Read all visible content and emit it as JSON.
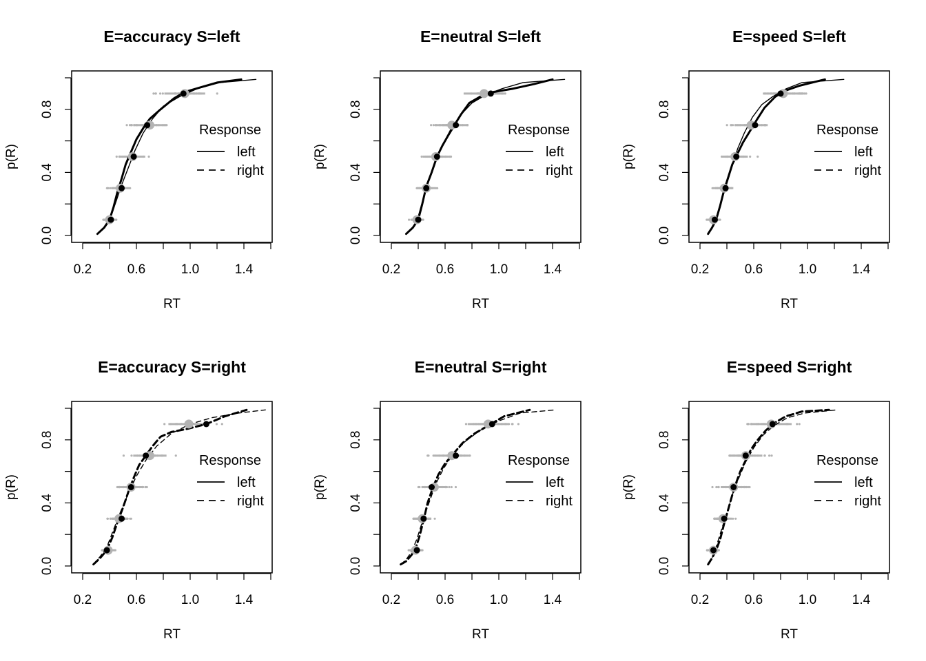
{
  "chart_data": [
    {
      "type": "line",
      "title": "E=accuracy S=left",
      "xlabel": "RT",
      "ylabel": "p(R)",
      "xlim": [
        0.2,
        1.6
      ],
      "ylim": [
        0.0,
        1.0
      ],
      "xticks": [
        "0.2",
        "0.6",
        "1.0",
        "1.4"
      ],
      "yticks": [
        "0.0",
        "0.4",
        "0.8"
      ],
      "legend": {
        "title": "Response",
        "entries": [
          "left",
          "right"
        ],
        "styles": [
          "solid",
          "dashed"
        ],
        "placement": "right"
      },
      "observed_quantiles": {
        "p": [
          0.1,
          0.3,
          0.5,
          0.7,
          0.9
        ],
        "rt": [
          0.41,
          0.49,
          0.58,
          0.68,
          0.95
        ]
      },
      "predicted_quantiles": {
        "p": [
          0.1,
          0.3,
          0.5,
          0.7,
          0.9
        ],
        "rt": [
          0.4,
          0.48,
          0.57,
          0.7,
          0.96
        ]
      },
      "series": [
        {
          "name": "left",
          "style": "solid",
          "x": [
            0.31,
            0.36,
            0.4,
            0.43,
            0.46,
            0.49,
            0.52,
            0.56,
            0.6,
            0.65,
            0.7,
            0.78,
            0.88,
            0.96,
            1.08,
            1.2,
            1.38
          ],
          "y": [
            0.01,
            0.05,
            0.1,
            0.18,
            0.28,
            0.36,
            0.45,
            0.53,
            0.61,
            0.68,
            0.74,
            0.8,
            0.87,
            0.91,
            0.94,
            0.97,
            0.99
          ]
        },
        {
          "name": "left-sim",
          "style": "solid-thin",
          "x": [
            0.31,
            0.37,
            0.41,
            0.45,
            0.49,
            0.54,
            0.59,
            0.65,
            0.72,
            0.8,
            0.92,
            1.05,
            1.22,
            1.49
          ],
          "y": [
            0.01,
            0.06,
            0.12,
            0.22,
            0.32,
            0.43,
            0.54,
            0.65,
            0.74,
            0.82,
            0.88,
            0.93,
            0.97,
            0.99
          ]
        }
      ]
    },
    {
      "type": "line",
      "title": "E=neutral S=left",
      "xlabel": "RT",
      "ylabel": "p(R)",
      "xlim": [
        0.2,
        1.6
      ],
      "ylim": [
        0.0,
        1.0
      ],
      "xticks": [
        "0.2",
        "0.6",
        "1.0",
        "1.4"
      ],
      "yticks": [
        "0.0",
        "0.4",
        "0.8"
      ],
      "legend": {
        "title": "Response",
        "entries": [
          "left",
          "right"
        ],
        "styles": [
          "solid",
          "dashed"
        ],
        "placement": "right"
      },
      "observed_quantiles": {
        "p": [
          0.1,
          0.3,
          0.5,
          0.7,
          0.9
        ],
        "rt": [
          0.4,
          0.46,
          0.54,
          0.68,
          0.94
        ]
      },
      "predicted_quantiles": {
        "p": [
          0.1,
          0.3,
          0.5,
          0.7,
          0.9
        ],
        "rt": [
          0.39,
          0.46,
          0.53,
          0.65,
          0.89
        ]
      },
      "series": [
        {
          "name": "left",
          "style": "solid",
          "x": [
            0.31,
            0.36,
            0.4,
            0.43,
            0.46,
            0.5,
            0.54,
            0.58,
            0.62,
            0.67,
            0.72,
            0.78,
            0.86,
            0.96,
            1.1,
            1.26,
            1.4
          ],
          "y": [
            0.01,
            0.05,
            0.1,
            0.2,
            0.31,
            0.4,
            0.5,
            0.57,
            0.63,
            0.7,
            0.77,
            0.84,
            0.88,
            0.91,
            0.93,
            0.96,
            0.99
          ]
        },
        {
          "name": "left-sim",
          "style": "solid-thin",
          "x": [
            0.31,
            0.36,
            0.4,
            0.44,
            0.48,
            0.53,
            0.58,
            0.64,
            0.71,
            0.8,
            0.9,
            1.02,
            1.18,
            1.49
          ],
          "y": [
            0.01,
            0.05,
            0.12,
            0.24,
            0.35,
            0.47,
            0.57,
            0.67,
            0.76,
            0.84,
            0.89,
            0.93,
            0.97,
            0.99
          ]
        }
      ]
    },
    {
      "type": "line",
      "title": "E=speed S=left",
      "xlabel": "RT",
      "ylabel": "p(R)",
      "xlim": [
        0.2,
        1.6
      ],
      "ylim": [
        0.0,
        1.0
      ],
      "xticks": [
        "0.2",
        "0.6",
        "1.0",
        "1.4"
      ],
      "yticks": [
        "0.0",
        "0.4",
        "0.8"
      ],
      "legend": {
        "title": "Response",
        "entries": [
          "left",
          "right"
        ],
        "styles": [
          "solid",
          "dashed"
        ],
        "placement": "right"
      },
      "observed_quantiles": {
        "p": [
          0.1,
          0.3,
          0.5,
          0.7,
          0.9
        ],
        "rt": [
          0.31,
          0.39,
          0.47,
          0.61,
          0.8
        ]
      },
      "predicted_quantiles": {
        "p": [
          0.1,
          0.3,
          0.5,
          0.7,
          0.9
        ],
        "rt": [
          0.3,
          0.38,
          0.46,
          0.58,
          0.82
        ]
      },
      "series": [
        {
          "name": "left",
          "style": "solid",
          "x": [
            0.26,
            0.29,
            0.32,
            0.35,
            0.38,
            0.41,
            0.44,
            0.48,
            0.52,
            0.57,
            0.62,
            0.68,
            0.76,
            0.84,
            0.94,
            1.13
          ],
          "y": [
            0.01,
            0.05,
            0.1,
            0.19,
            0.29,
            0.37,
            0.45,
            0.52,
            0.59,
            0.66,
            0.73,
            0.81,
            0.88,
            0.92,
            0.95,
            0.99
          ]
        },
        {
          "name": "left-sim",
          "style": "solid-thin",
          "x": [
            0.26,
            0.3,
            0.33,
            0.36,
            0.4,
            0.44,
            0.48,
            0.53,
            0.59,
            0.66,
            0.74,
            0.84,
            0.96,
            1.27
          ],
          "y": [
            0.01,
            0.06,
            0.12,
            0.22,
            0.33,
            0.44,
            0.55,
            0.65,
            0.75,
            0.83,
            0.88,
            0.93,
            0.97,
            0.99
          ]
        }
      ]
    },
    {
      "type": "line",
      "title": "E=accuracy S=right",
      "xlabel": "RT",
      "ylabel": "p(R)",
      "xlim": [
        0.2,
        1.6
      ],
      "ylim": [
        0.0,
        1.0
      ],
      "xticks": [
        "0.2",
        "0.6",
        "1.0",
        "1.4"
      ],
      "yticks": [
        "0.0",
        "0.4",
        "0.8"
      ],
      "legend": {
        "title": "Response",
        "entries": [
          "left",
          "right"
        ],
        "styles": [
          "solid",
          "dashed"
        ],
        "placement": "right"
      },
      "observed_quantiles": {
        "p": [
          0.1,
          0.3,
          0.5,
          0.7,
          0.9
        ],
        "rt": [
          0.38,
          0.49,
          0.56,
          0.67,
          1.12
        ]
      },
      "predicted_quantiles": {
        "p": [
          0.1,
          0.3,
          0.5,
          0.7,
          0.9
        ],
        "rt": [
          0.39,
          0.47,
          0.56,
          0.7,
          0.99
        ]
      },
      "series": [
        {
          "name": "right",
          "style": "dashed",
          "x": [
            0.28,
            0.33,
            0.38,
            0.42,
            0.46,
            0.5,
            0.54,
            0.58,
            0.62,
            0.67,
            0.72,
            0.78,
            0.86,
            0.98,
            1.12,
            1.26,
            1.42
          ],
          "y": [
            0.01,
            0.05,
            0.1,
            0.18,
            0.28,
            0.37,
            0.47,
            0.56,
            0.64,
            0.7,
            0.76,
            0.82,
            0.85,
            0.87,
            0.9,
            0.95,
            0.99
          ]
        },
        {
          "name": "right-sim",
          "style": "dashed-thin",
          "x": [
            0.28,
            0.33,
            0.38,
            0.43,
            0.48,
            0.54,
            0.6,
            0.67,
            0.75,
            0.86,
            1.0,
            1.16,
            1.36,
            1.56
          ],
          "y": [
            0.01,
            0.06,
            0.12,
            0.23,
            0.34,
            0.46,
            0.57,
            0.67,
            0.76,
            0.84,
            0.9,
            0.94,
            0.97,
            0.99
          ]
        }
      ]
    },
    {
      "type": "line",
      "title": "E=neutral S=right",
      "xlabel": "RT",
      "ylabel": "p(R)",
      "xlim": [
        0.2,
        1.6
      ],
      "ylim": [
        0.0,
        1.0
      ],
      "xticks": [
        "0.2",
        "0.6",
        "1.0",
        "1.4"
      ],
      "yticks": [
        "0.0",
        "0.4",
        "0.8"
      ],
      "legend": {
        "title": "Response",
        "entries": [
          "left",
          "right"
        ],
        "styles": [
          "solid",
          "dashed"
        ],
        "placement": "right"
      },
      "observed_quantiles": {
        "p": [
          0.1,
          0.3,
          0.5,
          0.7,
          0.9
        ],
        "rt": [
          0.39,
          0.44,
          0.5,
          0.68,
          0.95
        ]
      },
      "predicted_quantiles": {
        "p": [
          0.1,
          0.3,
          0.5,
          0.7,
          0.9
        ],
        "rt": [
          0.38,
          0.43,
          0.52,
          0.65,
          0.92
        ]
      },
      "series": [
        {
          "name": "right",
          "style": "dashed",
          "x": [
            0.27,
            0.31,
            0.35,
            0.38,
            0.41,
            0.44,
            0.47,
            0.51,
            0.55,
            0.6,
            0.66,
            0.73,
            0.82,
            0.92,
            1.04,
            1.23
          ],
          "y": [
            0.01,
            0.03,
            0.07,
            0.11,
            0.19,
            0.29,
            0.4,
            0.5,
            0.58,
            0.65,
            0.71,
            0.78,
            0.84,
            0.89,
            0.95,
            0.99
          ]
        },
        {
          "name": "right-sim",
          "style": "dashed-thin",
          "x": [
            0.27,
            0.31,
            0.35,
            0.39,
            0.43,
            0.48,
            0.53,
            0.59,
            0.66,
            0.75,
            0.86,
            1.0,
            1.16,
            1.42
          ],
          "y": [
            0.01,
            0.04,
            0.09,
            0.17,
            0.28,
            0.4,
            0.52,
            0.62,
            0.71,
            0.79,
            0.86,
            0.92,
            0.97,
            0.99
          ]
        }
      ]
    },
    {
      "type": "line",
      "title": "E=speed S=right",
      "xlabel": "RT",
      "ylabel": "p(R)",
      "xlim": [
        0.2,
        1.6
      ],
      "ylim": [
        0.0,
        1.0
      ],
      "xticks": [
        "0.2",
        "0.6",
        "1.0",
        "1.4"
      ],
      "yticks": [
        "0.0",
        "0.4",
        "0.8"
      ],
      "legend": {
        "title": "Response",
        "entries": [
          "left",
          "right"
        ],
        "styles": [
          "solid",
          "dashed"
        ],
        "placement": "right"
      },
      "observed_quantiles": {
        "p": [
          0.1,
          0.3,
          0.5,
          0.7,
          0.9
        ],
        "rt": [
          0.3,
          0.38,
          0.45,
          0.54,
          0.74
        ]
      },
      "predicted_quantiles": {
        "p": [
          0.1,
          0.3,
          0.5,
          0.7,
          0.9
        ],
        "rt": [
          0.3,
          0.37,
          0.45,
          0.54,
          0.73
        ]
      },
      "series": [
        {
          "name": "right",
          "style": "dashed",
          "x": [
            0.26,
            0.29,
            0.32,
            0.35,
            0.38,
            0.41,
            0.44,
            0.47,
            0.5,
            0.54,
            0.58,
            0.63,
            0.69,
            0.76,
            0.84,
            0.96,
            1.16
          ],
          "y": [
            0.01,
            0.05,
            0.1,
            0.17,
            0.27,
            0.36,
            0.45,
            0.53,
            0.6,
            0.67,
            0.74,
            0.8,
            0.86,
            0.91,
            0.95,
            0.98,
            0.99
          ]
        },
        {
          "name": "right-sim",
          "style": "dashed-thin",
          "x": [
            0.26,
            0.29,
            0.32,
            0.36,
            0.4,
            0.44,
            0.49,
            0.54,
            0.6,
            0.67,
            0.75,
            0.85,
            0.98,
            1.22
          ],
          "y": [
            0.01,
            0.05,
            0.12,
            0.23,
            0.34,
            0.45,
            0.56,
            0.66,
            0.75,
            0.83,
            0.89,
            0.94,
            0.97,
            0.99
          ]
        }
      ]
    }
  ],
  "colors": {
    "observed": "#000000",
    "predicted": "#b3b3b3",
    "line": "#000000"
  }
}
